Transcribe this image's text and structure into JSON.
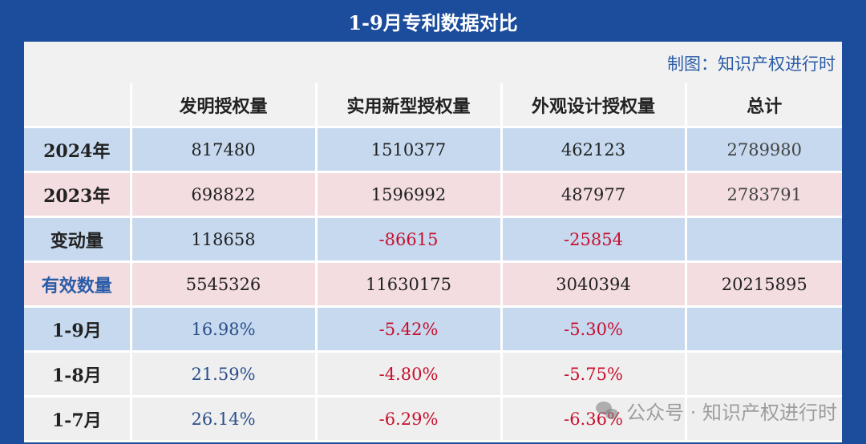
{
  "title": "1-9月专利数据对比",
  "credit": "制图：知识产权进行时",
  "columns": [
    "",
    "发明授权量",
    "实用新型授权量",
    "外观设计授权量",
    "总计"
  ],
  "rows": [
    {
      "label": "2024年",
      "cells": [
        "817480",
        "1510377",
        "462123",
        "2789980"
      ]
    },
    {
      "label": "2023年",
      "cells": [
        "698822",
        "1596992",
        "487977",
        "2783791"
      ]
    },
    {
      "label": "变动量",
      "cells": [
        "118658",
        "-86615",
        "-25854",
        ""
      ]
    },
    {
      "label": "有效数量",
      "cells": [
        "5545326",
        "11630175",
        "3040394",
        "20215895"
      ]
    },
    {
      "label": "1-9月",
      "cells": [
        "16.98%",
        "-5.42%",
        "-5.30%",
        ""
      ]
    },
    {
      "label": "1-8月",
      "cells": [
        "21.59%",
        "-4.80%",
        "-5.75%",
        ""
      ]
    },
    {
      "label": "1-7月",
      "cells": [
        "26.14%",
        "-6.29%",
        "-6.36%",
        ""
      ]
    }
  ],
  "watermark": "公众号 · 知识产权进行时",
  "colors": {
    "background": "#1c4c9c",
    "blue_row": "#c6d9ef",
    "pink_row": "#f3dde0",
    "negative": "#c8102e"
  }
}
